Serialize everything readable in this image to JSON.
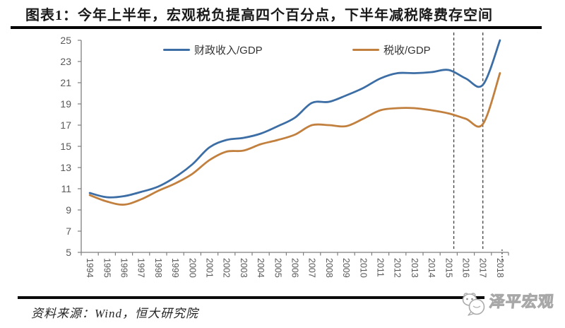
{
  "title": "图表1：今年上半年，宏观税负提高四个百分点，下半年减税降费存空间",
  "source": "资料来源：Wind，恒大研究院",
  "watermark": {
    "text": "泽平宏观"
  },
  "colors": {
    "fiscal_line": "#3c6ea5",
    "tax_line": "#c2803f",
    "axis": "#7f7f7f",
    "tick_text": "#595959",
    "dashed_line": "#3f3f3f",
    "title_text": "#1a1a1a",
    "rule_black": "#000000"
  },
  "chart_data": {
    "type": "line",
    "title": "图表1：今年上半年，宏观税负提高四个百分点，下半年减税降费存空间",
    "x": [
      "1994",
      "1995",
      "1996",
      "1997",
      "1998",
      "1999",
      "2000",
      "2001",
      "2002",
      "2003",
      "2004",
      "2005",
      "2006",
      "2007",
      "2008",
      "2009",
      "2010",
      "2011",
      "2012",
      "2013",
      "2014",
      "2015",
      "2016",
      "2017",
      "2018"
    ],
    "series": [
      {
        "name": "财政收入/GDP",
        "slug": "fiscal-revenue-gdp",
        "color": "#3c6ea5",
        "values": [
          10.6,
          10.2,
          10.3,
          10.7,
          11.2,
          12.1,
          13.3,
          14.9,
          15.6,
          15.8,
          16.2,
          16.9,
          17.7,
          19.1,
          19.2,
          19.8,
          20.5,
          21.4,
          21.9,
          21.9,
          22.0,
          22.2,
          21.4,
          20.8,
          25.0
        ]
      },
      {
        "name": "税收/GDP",
        "slug": "tax-gdp",
        "color": "#c2803f",
        "values": [
          10.4,
          9.8,
          9.5,
          10.0,
          10.8,
          11.5,
          12.4,
          13.7,
          14.5,
          14.6,
          15.2,
          15.6,
          16.1,
          17.0,
          17.0,
          16.9,
          17.6,
          18.4,
          18.6,
          18.6,
          18.4,
          18.1,
          17.6,
          17.1,
          21.9
        ]
      }
    ],
    "xlabel": "",
    "ylabel": "",
    "ylim": [
      5,
      25
    ],
    "ytick_step": 2,
    "yticks": [
      5,
      7,
      9,
      11,
      13,
      15,
      17,
      19,
      21,
      23,
      25
    ],
    "grid": false,
    "legend_position": "top",
    "annotations": {
      "dashed_vlines_years": [
        2015.3,
        2017.0
      ],
      "axis_break_dots_year": "2018"
    }
  }
}
